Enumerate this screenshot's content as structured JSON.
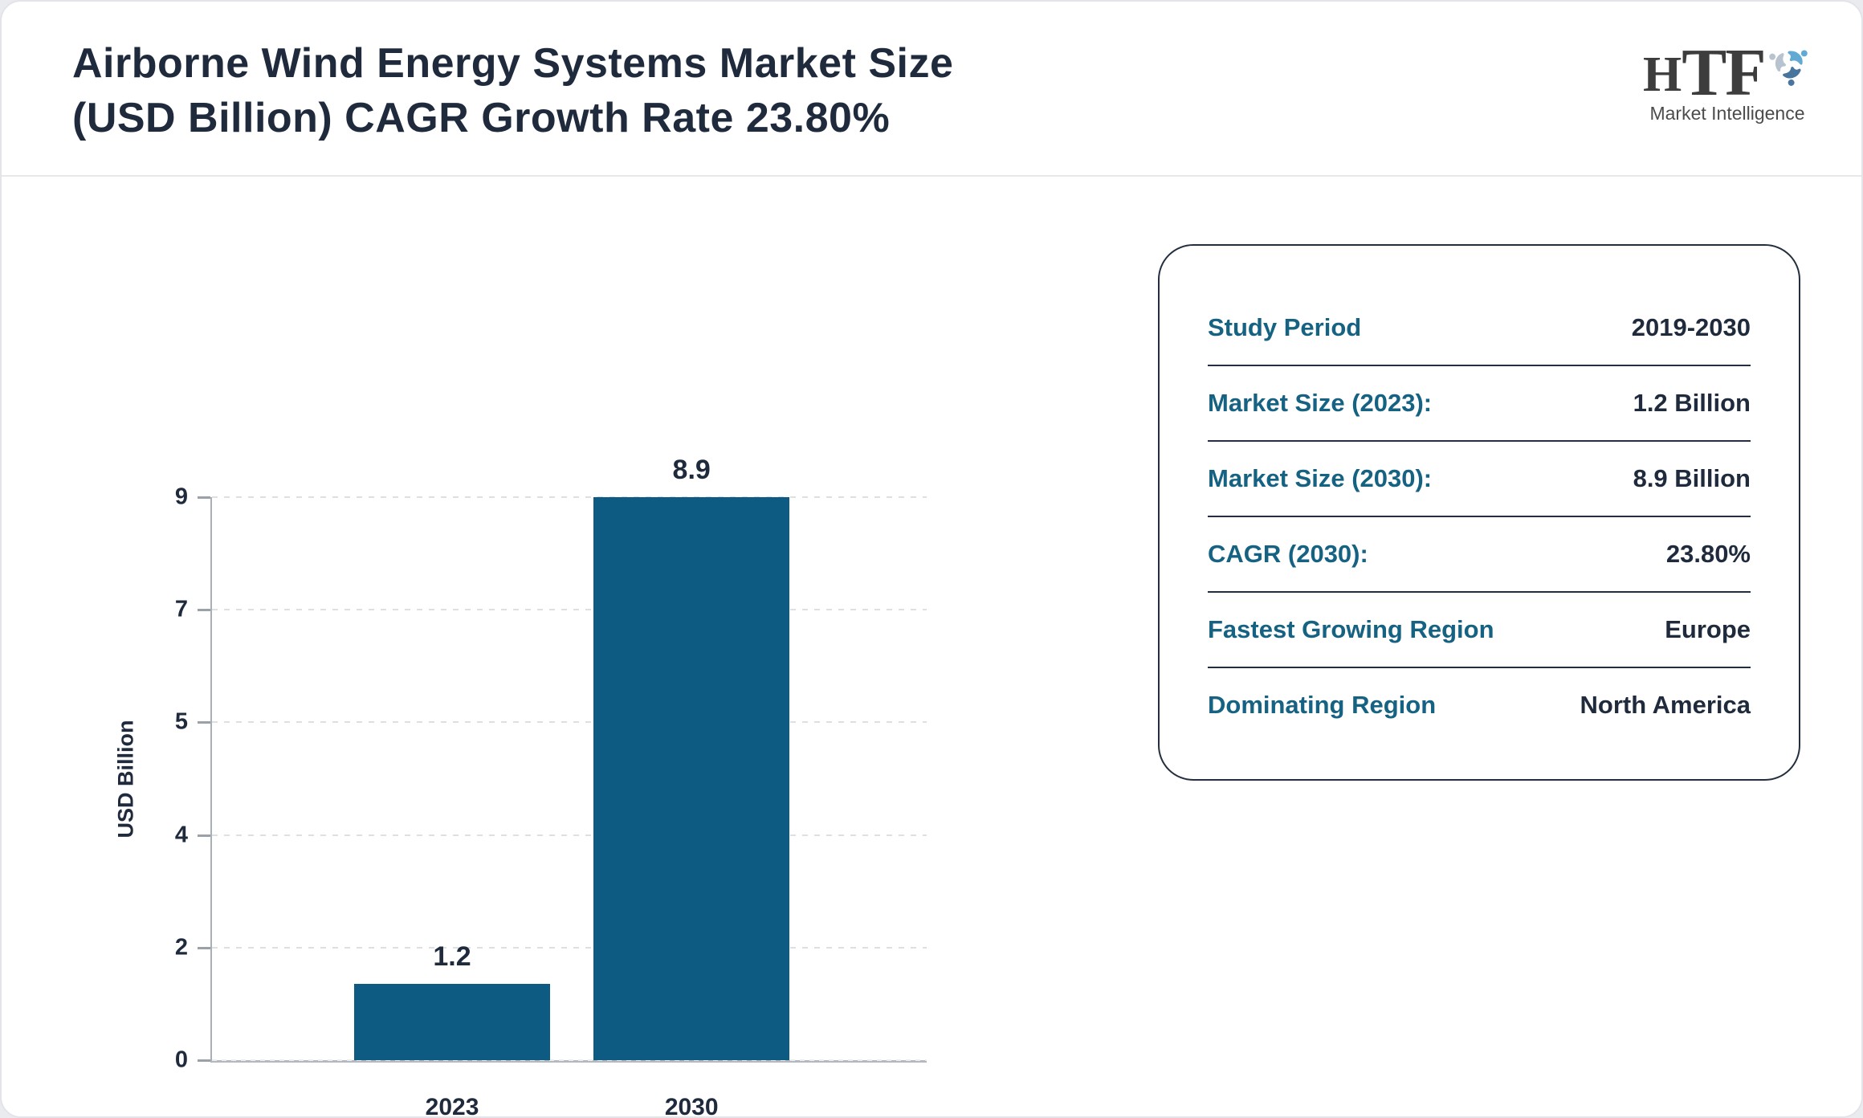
{
  "header": {
    "title_line1": "Airborne Wind Energy Systems Market Size",
    "title_line2": "(USD Billion) CAGR Growth Rate 23.80%"
  },
  "logo": {
    "h": "H",
    "tf": "TF",
    "subtitle": "Market Intelligence",
    "swirl_colors": [
      "#62a9d4",
      "#47759e",
      "#b7c3ce"
    ]
  },
  "chart_data": {
    "type": "bar",
    "title": "Airborne Wind Energy Systems Market Size (USD Billion) CAGR Growth Rate 23.80%",
    "categories": [
      "2023",
      "2030"
    ],
    "values": [
      1.2,
      8.9
    ],
    "value_labels": [
      "1.2",
      "8.9"
    ],
    "xlabel": "",
    "ylabel": "USD Billion",
    "ylim": [
      0,
      8.9
    ],
    "y_tick_values": [
      0,
      1.78,
      3.56,
      5.34,
      7.12,
      8.9
    ],
    "y_tick_labels": [
      "0",
      "2",
      "4",
      "5",
      "7",
      "9"
    ],
    "grid": true,
    "legend": false,
    "bar_color": "#0d5b82",
    "layout": {
      "bar_center_fracs": [
        0.336,
        0.671
      ],
      "bar_width_frac": 0.274
    }
  },
  "panel": {
    "rows": [
      {
        "label": "Study Period",
        "value": "2019-2030"
      },
      {
        "label": "Market Size (2023):",
        "value": "1.2 Billion"
      },
      {
        "label": "Market Size (2030):",
        "value": "8.9 Billion"
      },
      {
        "label": "CAGR (2030):",
        "value": "23.80%"
      },
      {
        "label": "Fastest Growing Region",
        "value": "Europe"
      },
      {
        "label": "Dominating Region",
        "value": "North America"
      }
    ]
  },
  "colors": {
    "accent_teal": "#166282",
    "navy": "#1f2b3c",
    "bar": "#0d5b82",
    "axis_gray": "#a9afb7",
    "grid_gray": "#dedfe1"
  }
}
